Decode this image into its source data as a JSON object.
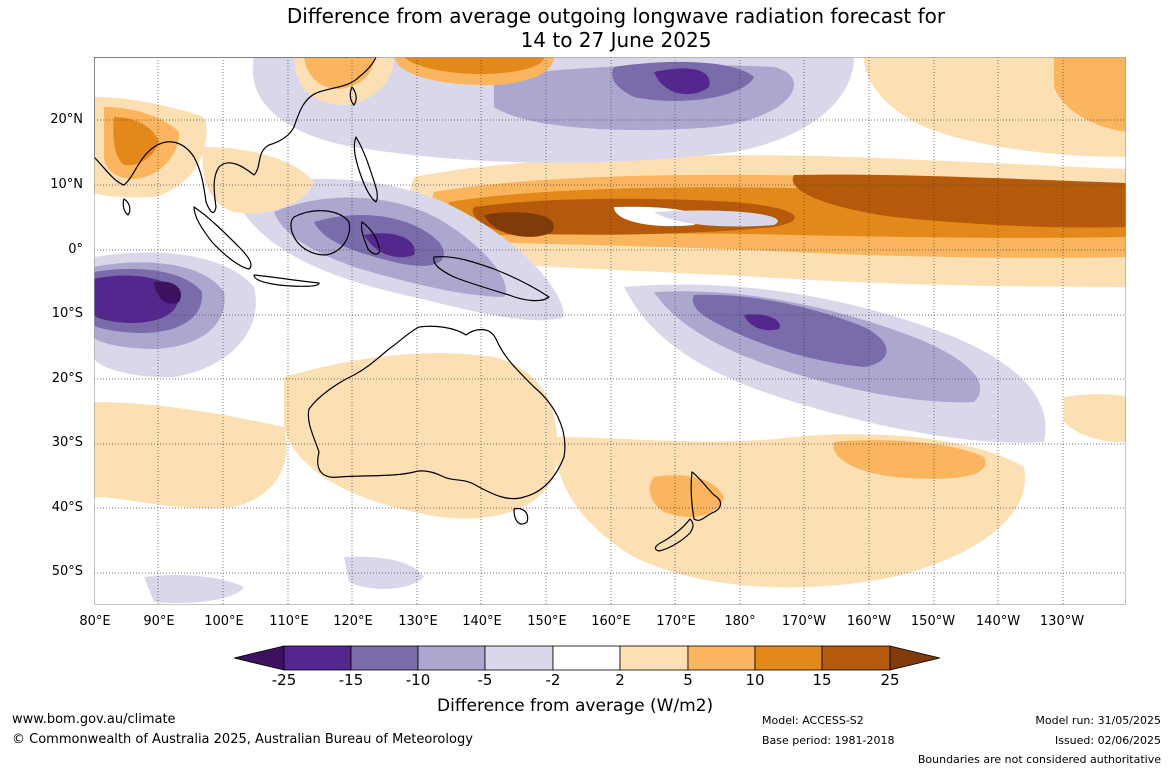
{
  "title_line1": "Difference from average outgoing longwave radiation forecast for",
  "title_line2": "14 to 27 June 2025",
  "lat_labels": [
    "20°N",
    "10°N",
    "0°",
    "10°S",
    "20°S",
    "30°S",
    "40°S",
    "50°S"
  ],
  "lon_labels": [
    "80°E",
    "90°E",
    "100°E",
    "110°E",
    "120°E",
    "130°E",
    "140°E",
    "150°E",
    "160°E",
    "170°E",
    "180°",
    "170°W",
    "160°W",
    "150°W",
    "140°W",
    "130°W"
  ],
  "colorbar": {
    "ticks": [
      "-25",
      "-15",
      "-10",
      "-5",
      "-2",
      "2",
      "5",
      "10",
      "15",
      "25"
    ],
    "colors": [
      "#3d1060",
      "#54278f",
      "#7a6bab",
      "#aca7cf",
      "#d9d8ea",
      "#ffffff",
      "#fddfb4",
      "#fbb55e",
      "#e3881a",
      "#b45a0a",
      "#7f3b08"
    ],
    "label": "Difference from average (W/m2)"
  },
  "footer": {
    "website": "www.bom.gov.au/climate",
    "copyright": "© Commonwealth of Australia 2025, Australian Bureau of Meteorology",
    "model": "Model: ACCESS-S2",
    "base_period": "Base period: 1981-2018",
    "model_run": "Model run: 31/05/2025",
    "issued": "Issued: 02/06/2025",
    "disclaimer": "Boundaries are not considered authoritative"
  }
}
